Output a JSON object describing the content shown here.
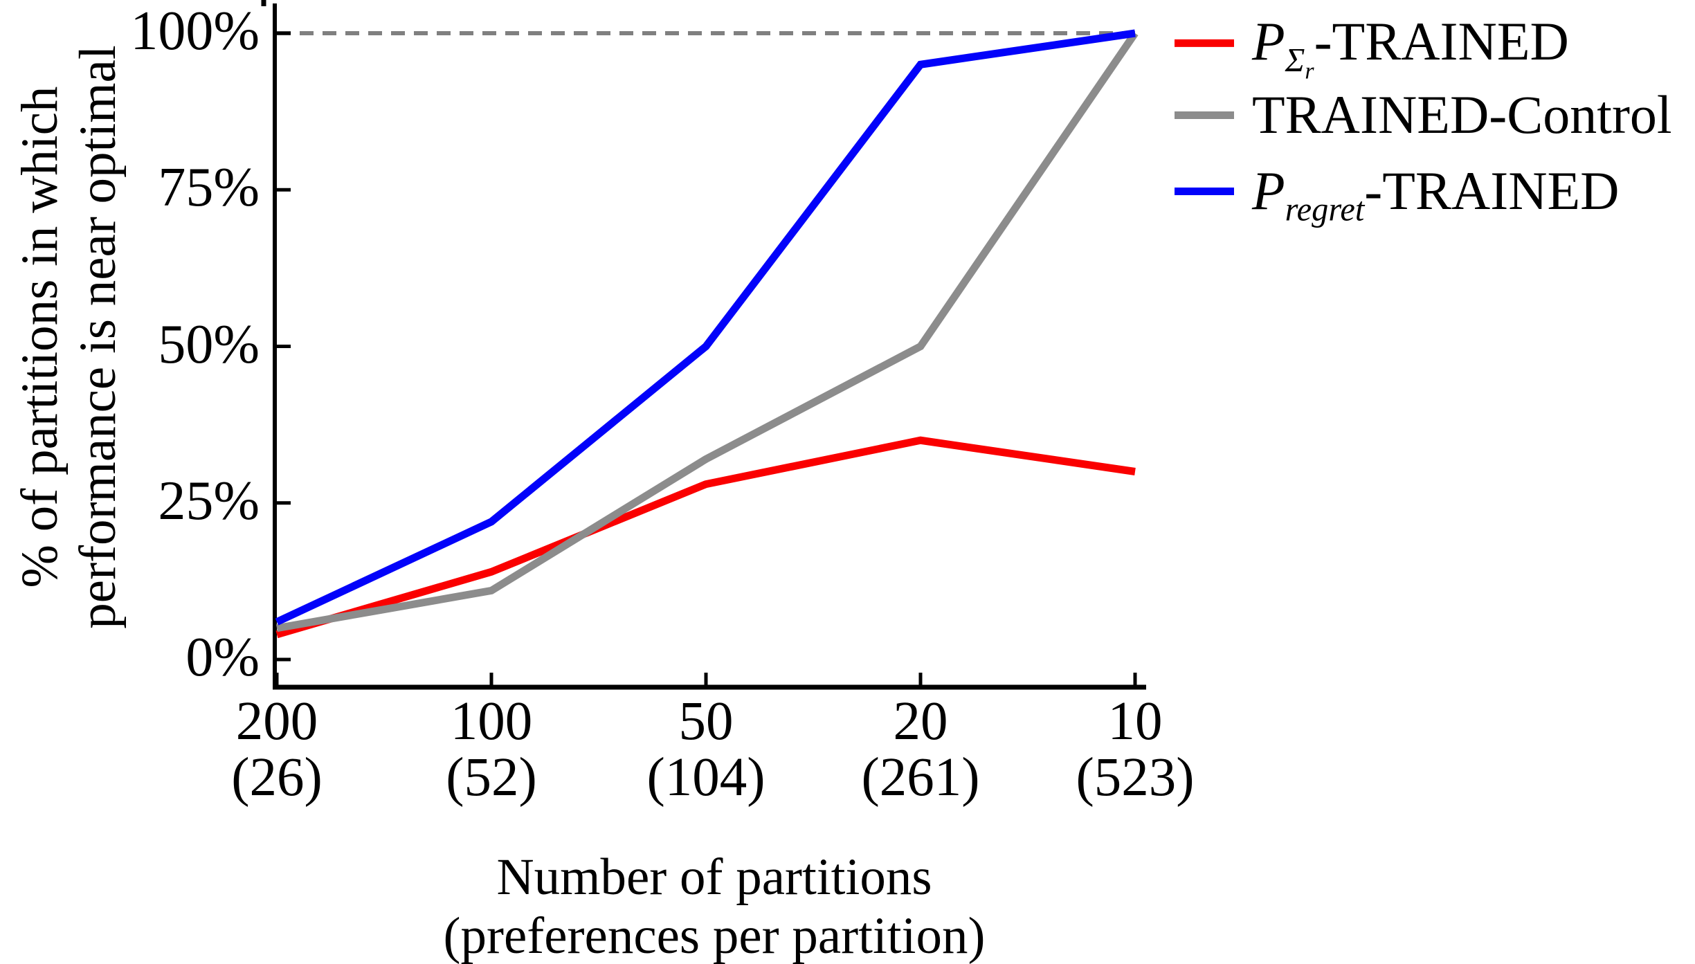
{
  "chart_data": {
    "type": "line",
    "title": "",
    "xlabel_line1": "Number of partitions",
    "xlabel_line2": "(preferences per partition)",
    "ylabel_line1": "% of partitions in which",
    "ylabel_line2": "performance is near optimal",
    "x_categories": [
      "200",
      "100",
      "50",
      "20",
      "10"
    ],
    "x_sub_categories": [
      "(26)",
      "(52)",
      "(104)",
      "(261)",
      "(523)"
    ],
    "yticks": [
      "0%",
      "25%",
      "50%",
      "75%",
      "100%"
    ],
    "ytick_values": [
      0,
      25,
      50,
      75,
      100
    ],
    "ylim": [
      0,
      100
    ],
    "grid": false,
    "legend_position": "outside-top-right",
    "reference_line": {
      "value": 100,
      "style": "dashed",
      "color": "#808080"
    },
    "axis_color": "#000000",
    "series": [
      {
        "name": "P_{Sigma_r}-TRAINED",
        "color": "#fa0000",
        "values": [
          4,
          14,
          28,
          35,
          30
        ]
      },
      {
        "name": "TRAINED-Control",
        "color": "#8c8c8c",
        "values": [
          5,
          11,
          32,
          50,
          100
        ]
      },
      {
        "name": "P_{regret}-TRAINED",
        "color": "#0202fa",
        "values": [
          6,
          22,
          50,
          95,
          100
        ]
      }
    ]
  },
  "legend": {
    "items": [
      {
        "p": "P",
        "sub": "Σ",
        "subsub": "r",
        "suffix": "-TRAINED"
      },
      {
        "label": "TRAINED-Control"
      },
      {
        "p": "P",
        "sub": "regret",
        "suffix": "-TRAINED"
      }
    ]
  }
}
